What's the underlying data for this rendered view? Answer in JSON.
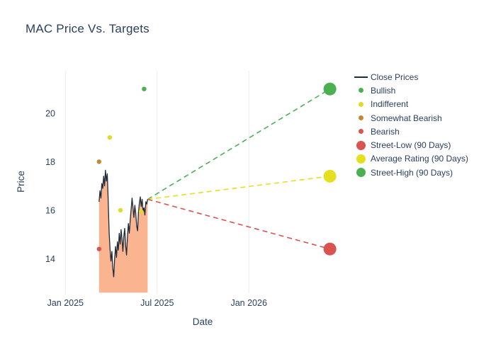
{
  "chart_data": {
    "type": "line",
    "title": "MAC Price Vs. Targets",
    "xlabel": "Date",
    "ylabel": "Price",
    "x_unit": "months since Jan 2025",
    "xlim_months": [
      -0.2,
      18.2
    ],
    "ylim": [
      12.55,
      21.75
    ],
    "grid": "vertical-only",
    "legend_position": "right",
    "x_ticks": [
      {
        "label": "Jan 2025",
        "month": 0
      },
      {
        "label": "Jul 2025",
        "month": 6
      },
      {
        "label": "Jan 2026",
        "month": 12
      }
    ],
    "y_ticks": [
      14,
      16,
      18,
      20
    ],
    "close_prices": {
      "start_month": 2.2,
      "step_months": 0.06,
      "values": [
        16.35,
        16.8,
        16.5,
        17.1,
        16.9,
        17.4,
        17.0,
        17.65,
        17.2,
        17.5,
        16.4,
        15.1,
        14.4,
        13.9,
        14.3,
        13.6,
        13.25,
        14.0,
        14.5,
        14.05,
        14.7,
        14.35,
        15.05,
        14.6,
        15.2,
        14.85,
        14.3,
        14.9,
        15.25,
        14.55,
        14.15,
        14.9,
        15.45,
        15.05,
        15.6,
        16.05,
        16.5,
        16.1,
        15.7,
        16.2,
        15.85,
        15.35,
        15.15,
        15.9,
        16.3,
        16.55,
        16.15,
        16.45,
        15.95,
        16.1,
        15.8,
        16.35,
        16.25,
        16.45
      ]
    },
    "fill_base": 12.6,
    "ratings": [
      {
        "type": "somewhat_bearish",
        "month": 2.2,
        "price": 18.0
      },
      {
        "type": "bearish",
        "month": 2.2,
        "price": 14.4
      },
      {
        "type": "indifferent",
        "month": 2.9,
        "price": 19.0
      },
      {
        "type": "indifferent",
        "month": 3.6,
        "price": 16.0
      },
      {
        "type": "indifferent",
        "month": 4.95,
        "price": 15.95
      },
      {
        "type": "bullish",
        "month": 5.15,
        "price": 21.0
      }
    ],
    "targets": {
      "start": {
        "month": 5.38,
        "price": 16.45
      },
      "end_month": 17.3,
      "street_low": 14.4,
      "average_rating": 17.4,
      "street_high": 21.0
    },
    "legend_items": [
      {
        "label": "Close Prices",
        "marker": "line",
        "color_key": "close_line"
      },
      {
        "label": "Bullish",
        "marker": "dot",
        "color_key": "bullish"
      },
      {
        "label": "Indifferent",
        "marker": "dot",
        "color_key": "indifferent"
      },
      {
        "label": "Somewhat Bearish",
        "marker": "dot",
        "color_key": "somewhat_bearish"
      },
      {
        "label": "Bearish",
        "marker": "dot",
        "color_key": "bearish"
      },
      {
        "label": "Street-Low (90 Days)",
        "marker": "big",
        "color_key": "street_low"
      },
      {
        "label": "Average Rating (90 Days)",
        "marker": "big",
        "color_key": "average_rating"
      },
      {
        "label": "Street-High (90 Days)",
        "marker": "big",
        "color_key": "street_high"
      }
    ]
  },
  "colors": {
    "background": "#ffffff",
    "close_line": "#1e2b39",
    "bullish": "#4bb052",
    "indifferent": "#e0da2c",
    "somewhat_bearish": "#c6882f",
    "bearish": "#d9534f",
    "street_low": "#d9534f",
    "average_rating": "#e5e01e",
    "street_high": "#4bb052",
    "fill": "#f9a87c",
    "grid": "#e9edf2",
    "text": "#2a3f5f"
  }
}
